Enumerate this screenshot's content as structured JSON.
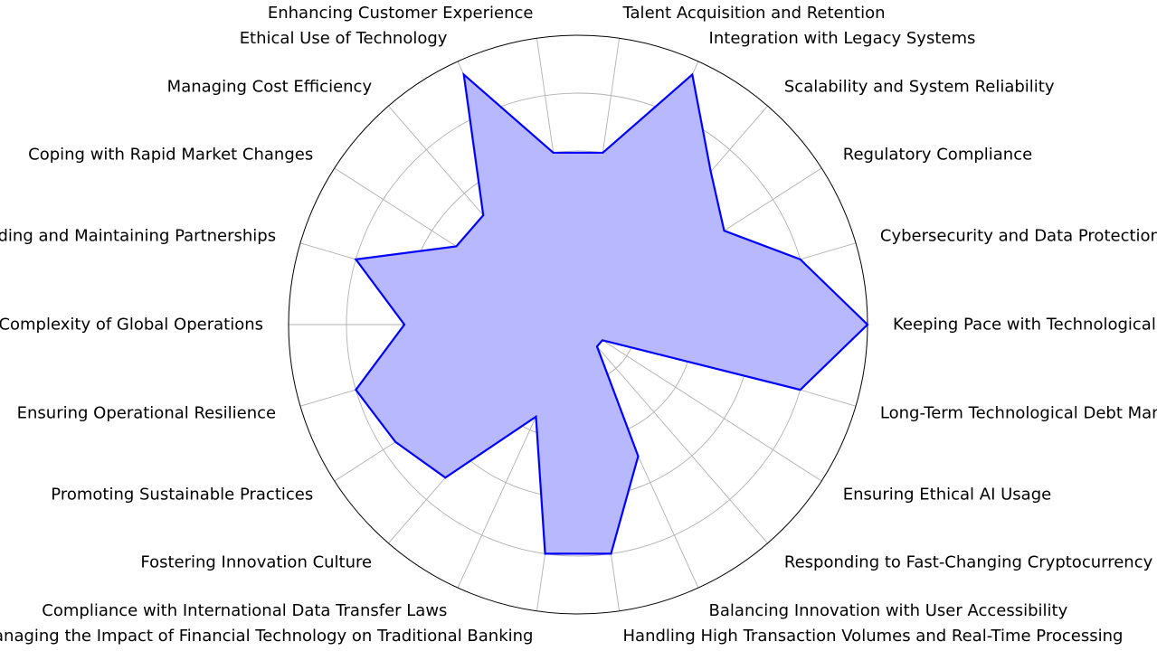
{
  "chart_data": {
    "type": "radar",
    "categories": [
      "Keeping Pace with Technological Advancements",
      "Cybersecurity and Data Protection",
      "Regulatory Compliance",
      "Scalability and System Reliability",
      "Integration with Legacy Systems",
      "Talent Acquisition and Retention",
      "Enhancing Customer Experience",
      "Ethical Use of Technology",
      "Managing Cost Efficiency",
      "Coping with Rapid Market Changes",
      "Building and Maintaining Partnerships",
      "Complexity of Global Operations",
      "Ensuring Operational Resilience",
      "Promoting Sustainable Practices",
      "Fostering Innovation Culture",
      "Compliance with International Data Transfer Laws",
      "Managing the Impact of Financial Technology on Traditional Banking",
      "Handling High Transaction Volumes and Real-Time Processing",
      "Balancing Innovation with User Accessibility",
      "Responding to Fast-Changing Cryptocurrency Markets",
      "Ensuring Ethical AI Usage",
      "Long-Term Technological Debt Management"
    ],
    "series": [
      {
        "values": [
          10,
          8,
          6,
          7,
          9.5,
          6,
          6,
          9.5,
          5,
          5,
          8,
          6,
          8,
          7.5,
          7,
          3.5,
          8,
          8,
          5,
          1,
          1,
          8
        ],
        "color": "#0000ff",
        "fill": "#b8b8ff"
      }
    ],
    "rlim": [
      0,
      10
    ],
    "radial_gridlines": [
      2,
      4,
      6,
      8,
      10
    ],
    "radial_tick_labels_shown": false,
    "grid": true,
    "grid_color": "#b0b0b0",
    "outer_ring_color": "#000000"
  }
}
